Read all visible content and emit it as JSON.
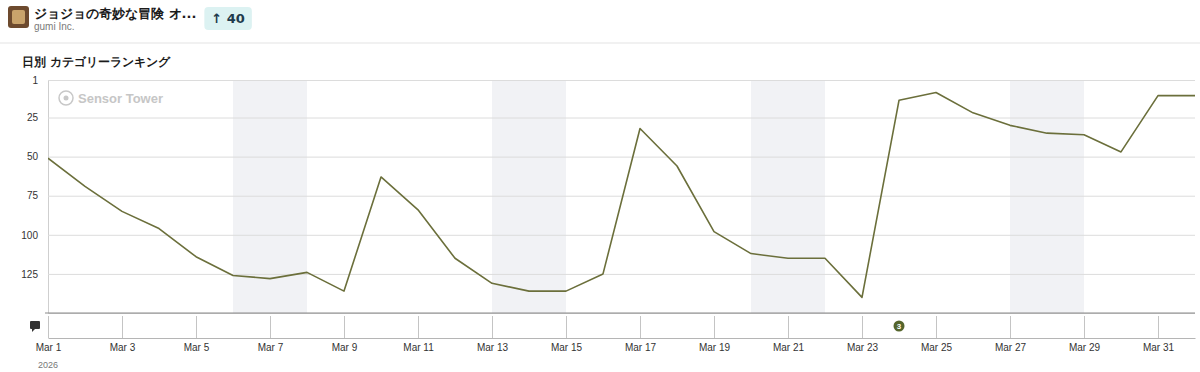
{
  "header": {
    "title": "ジョジョの奇妙な冒険 オ...",
    "publisher": "gumi Inc.",
    "change": "↑ 40"
  },
  "chart_data": {
    "type": "line",
    "title": "日別 カテゴリーランキング",
    "watermark": "Sensor Tower",
    "categories": [
      "Mar 1",
      null,
      "Mar 3",
      null,
      "Mar 5",
      null,
      "Mar 7",
      null,
      "Mar 9",
      null,
      "Mar 11",
      null,
      "Mar 13",
      null,
      "Mar 15",
      null,
      "Mar 17",
      null,
      "Mar 19",
      null,
      "Mar 21",
      null,
      "Mar 23",
      null,
      "Mar 25",
      null,
      "Mar 27",
      null,
      "Mar 29",
      null,
      "Mar 31",
      null
    ],
    "year_label": "2026",
    "values": [
      51,
      69,
      85,
      96,
      114,
      126,
      128,
      124,
      136,
      63,
      84,
      115,
      131,
      136,
      136,
      125,
      32,
      56,
      98,
      112,
      115,
      115,
      140,
      14,
      9,
      22,
      30,
      35,
      36,
      47,
      11,
      11
    ],
    "color": "#6b6f3b",
    "ylim": [
      150,
      1
    ],
    "yticks": [
      1,
      25,
      50,
      75,
      100,
      125
    ],
    "grid": true,
    "annotations": [
      {
        "position": 23,
        "text": "3"
      }
    ]
  }
}
